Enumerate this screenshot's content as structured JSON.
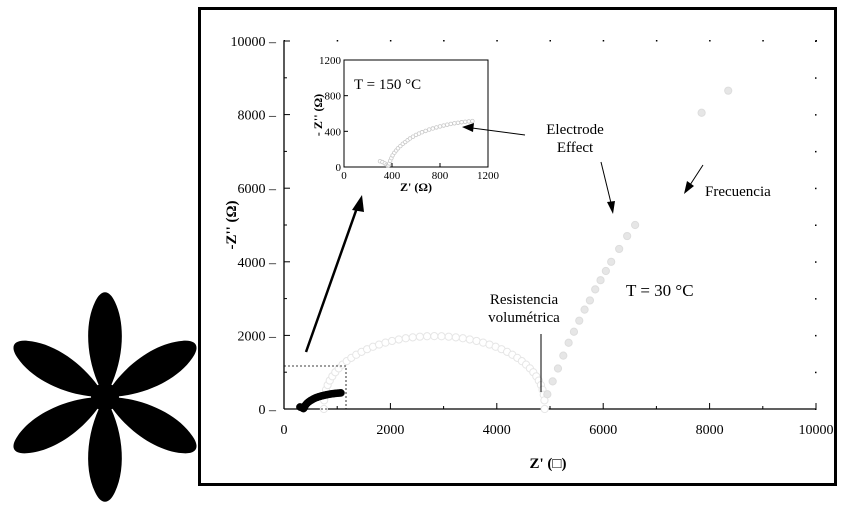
{
  "chart_data": [
    {
      "type": "scatter",
      "title": "",
      "xlabel": "Z' (□)",
      "ylabel": "-Z''  (Ω)",
      "xlim": [
        0,
        10000
      ],
      "ylim": [
        0,
        10000
      ],
      "x_ticks": [
        "0",
        "2000",
        "4000",
        "6000",
        "8000",
        "10000"
      ],
      "y_ticks": [
        "0",
        "2000",
        "4000",
        "6000",
        "8000",
        "10000"
      ],
      "grid": false,
      "annotations": [
        {
          "id": "electrode",
          "lines": [
            "Electrode",
            "Effect"
          ]
        },
        {
          "id": "frecuencia",
          "lines": [
            "Frecuencia"
          ]
        },
        {
          "id": "temp",
          "lines": [
            "T = 30 °C"
          ]
        },
        {
          "id": "resistencia",
          "lines": [
            "Resistencia",
            "volumétrica"
          ]
        }
      ],
      "series": [
        {
          "color": "#e6e6e6",
          "arc": {
            "x_start": 750,
            "x_end": 4900,
            "y_peak": 1980
          },
          "spur": {
            "x": [
              4950,
              5050,
              5150,
              5250,
              5350,
              5450,
              5550,
              5650,
              5750,
              5850,
              5950,
              6050,
              6150,
              6300,
              6450,
              6600,
              7850,
              8350
            ],
            "y": [
              400,
              750,
              1100,
              1450,
              1800,
              2100,
              2400,
              2700,
              2950,
              3250,
              3500,
              3750,
              4000,
              4350,
              4700,
              5000,
              8050,
              8650
            ]
          }
        }
      ]
    },
    {
      "type": "scatter",
      "inset": true,
      "title": "",
      "xlabel": "Z' (Ω)",
      "ylabel": "- Z'' (Ω)",
      "xlim": [
        0,
        1200
      ],
      "ylim": [
        0,
        1200
      ],
      "x_ticks": [
        "0",
        "400",
        "800",
        "1200"
      ],
      "y_ticks": [
        "0",
        "400",
        "800",
        "1200"
      ],
      "annotations": [
        {
          "id": "temp-inset",
          "lines": [
            "T = 150 °C"
          ]
        }
      ],
      "series": [
        {
          "color": "#c8c8c8",
          "x": [
            300,
            320,
            340,
            355,
            365,
            372,
            378,
            385,
            395,
            405,
            420,
            435,
            450,
            470,
            490,
            510,
            530,
            550,
            575,
            600,
            625,
            650,
            680,
            710,
            740,
            770,
            800,
            830,
            860,
            890,
            920,
            950,
            980,
            1010,
            1040,
            1070
          ],
          "y": [
            65,
            55,
            40,
            25,
            15,
            20,
            40,
            70,
            100,
            130,
            160,
            185,
            210,
            235,
            260,
            280,
            300,
            320,
            340,
            360,
            375,
            390,
            405,
            420,
            432,
            444,
            455,
            465,
            475,
            483,
            490,
            496,
            502,
            507,
            511,
            515
          ]
        }
      ]
    }
  ]
}
